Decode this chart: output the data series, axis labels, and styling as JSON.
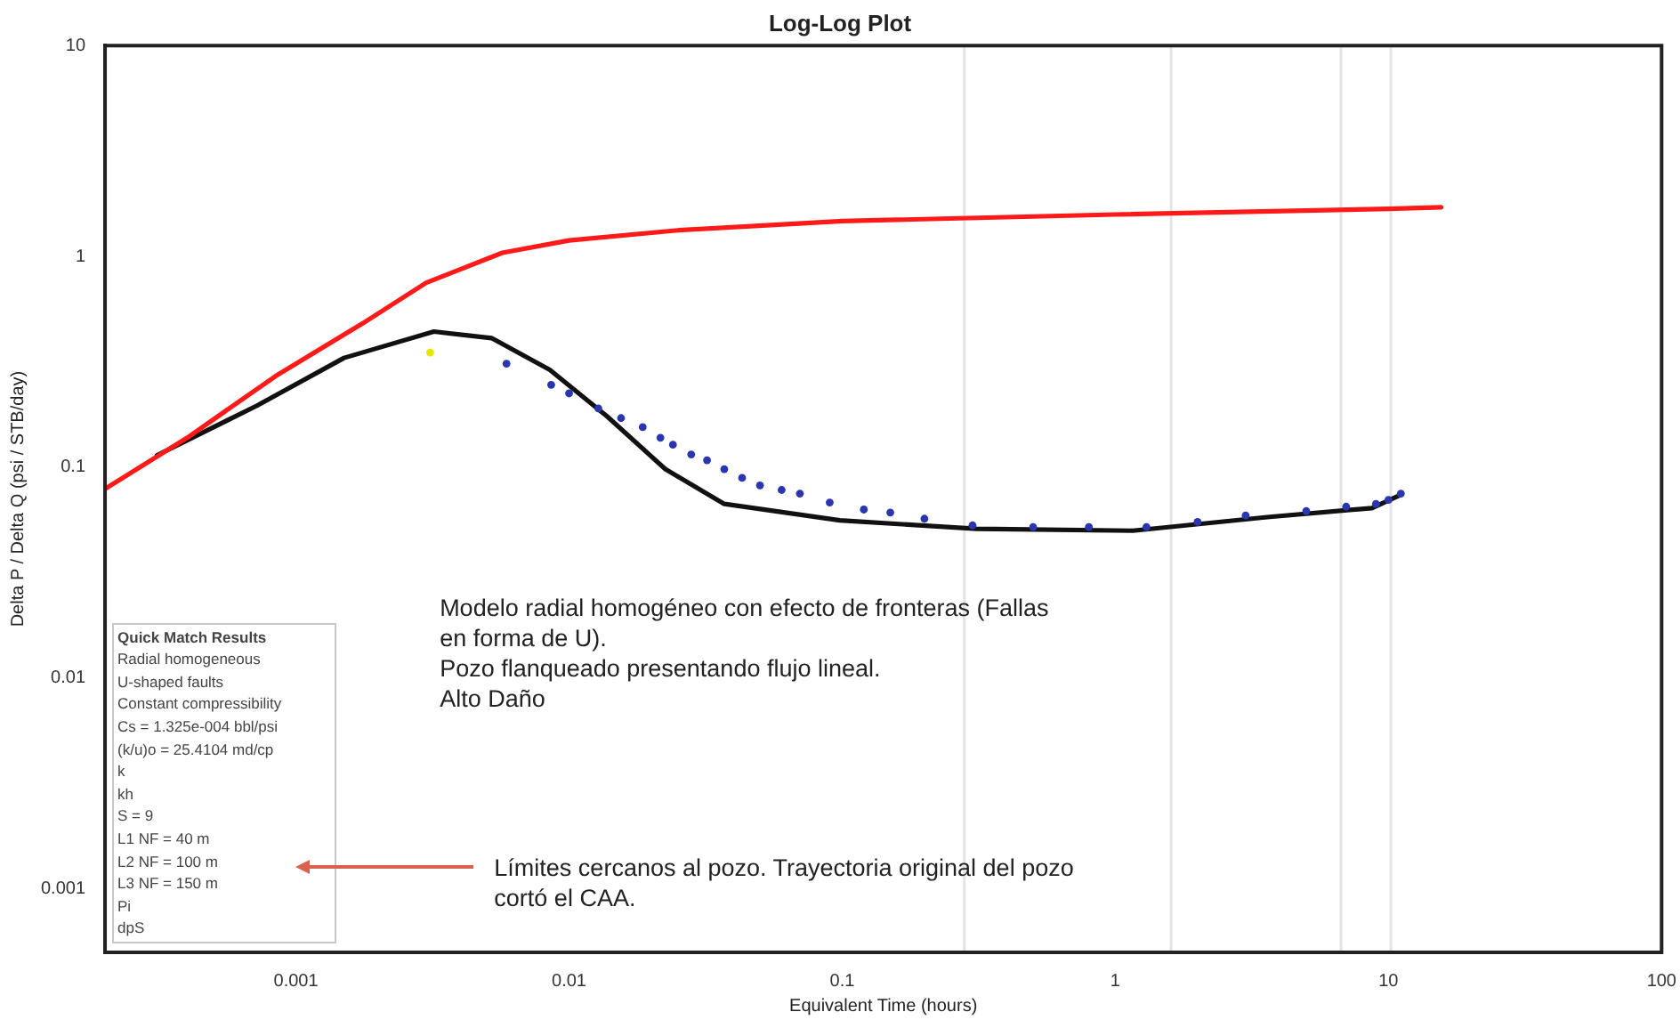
{
  "chart_data": {
    "type": "scatter",
    "title": "Log-Log Plot",
    "xlabel": "Equivalent Time (hours)",
    "ylabel": "Delta P / Delta Q (psi / STB/day)",
    "log": "xy",
    "grid": false,
    "legend": false,
    "xlim": [
      0.0002,
      100
    ],
    "xticks": [
      0.001,
      0.01,
      0.1,
      1,
      10,
      100
    ],
    "ylim": [
      0.0005,
      10
    ],
    "yticks": [
      0.001,
      0.01,
      0.1,
      1,
      10
    ],
    "ref_lines": [
      {
        "axis": "x",
        "value": 0.28,
        "color": "#e4e4e4"
      },
      {
        "axis": "x",
        "value": 1.6,
        "color": "#e4e4e4"
      },
      {
        "axis": "x",
        "value": 6.7,
        "color": "#e4e4e4"
      },
      {
        "axis": "x",
        "value": 10.2,
        "color": "#e4e4e4"
      }
    ],
    "series": [
      {
        "type": "line",
        "marker": "none",
        "color": "#ff1a1a",
        "x": [
          0.0002,
          0.0004,
          0.00084,
          0.00175,
          0.003,
          0.0057,
          0.01,
          0.025,
          0.1,
          1,
          10,
          15.6
        ],
        "values": [
          0.079,
          0.138,
          0.27,
          0.48,
          0.75,
          1.04,
          1.19,
          1.33,
          1.47,
          1.58,
          1.68,
          1.71
        ]
      },
      {
        "type": "line",
        "marker": "none",
        "color": "#111111",
        "x": [
          0.00031,
          0.00072,
          0.0015,
          0.0032,
          0.0052,
          0.0085,
          0.0138,
          0.0225,
          0.037,
          0.098,
          0.31,
          1.16,
          3.6,
          8.7,
          11.1
        ],
        "values": [
          0.114,
          0.196,
          0.33,
          0.44,
          0.41,
          0.29,
          0.174,
          0.098,
          0.067,
          0.056,
          0.051,
          0.05,
          0.058,
          0.064,
          0.074
        ]
      },
      {
        "type": "scatter",
        "marker": "circle",
        "color": "#2a35b0",
        "x": [
          0.0059,
          0.0086,
          0.01,
          0.0128,
          0.0155,
          0.0186,
          0.0216,
          0.024,
          0.028,
          0.032,
          0.037,
          0.043,
          0.05,
          0.06,
          0.07,
          0.09,
          0.12,
          0.15,
          0.2,
          0.3,
          0.5,
          0.8,
          1.3,
          2,
          3,
          5,
          7,
          9,
          10,
          11.1
        ],
        "values": [
          0.31,
          0.246,
          0.224,
          0.19,
          0.171,
          0.155,
          0.138,
          0.128,
          0.115,
          0.108,
          0.098,
          0.089,
          0.082,
          0.078,
          0.075,
          0.068,
          0.063,
          0.061,
          0.057,
          0.053,
          0.052,
          0.052,
          0.052,
          0.055,
          0.059,
          0.062,
          0.065,
          0.067,
          0.07,
          0.075
        ]
      },
      {
        "type": "scatter",
        "marker": "circle",
        "color": "#e6e600",
        "x": [
          0.0031
        ],
        "values": [
          0.35
        ]
      }
    ],
    "annotations": [
      "Quick Match Results",
      "Radial homogeneous",
      "U-shaped faults",
      "Constant compressibility",
      "Cs = 1.325e-004 bbl/psi",
      "(k/u)o = 25.4104 md/cp",
      "k",
      "kh",
      "S = 9",
      "L1 NF = 40 m",
      "L2 NF = 100 m",
      "L3 NF = 150 m",
      "Pi",
      "dpS",
      "Modelo radial homogéneo con efecto de fronteras (Fallas\nen forma de U).\nPozo flanqueado presentando flujo lineal.\nAlto Daño",
      "Límites cercanos al pozo. Trayectoria original del pozo\ncortó el CAA."
    ]
  }
}
